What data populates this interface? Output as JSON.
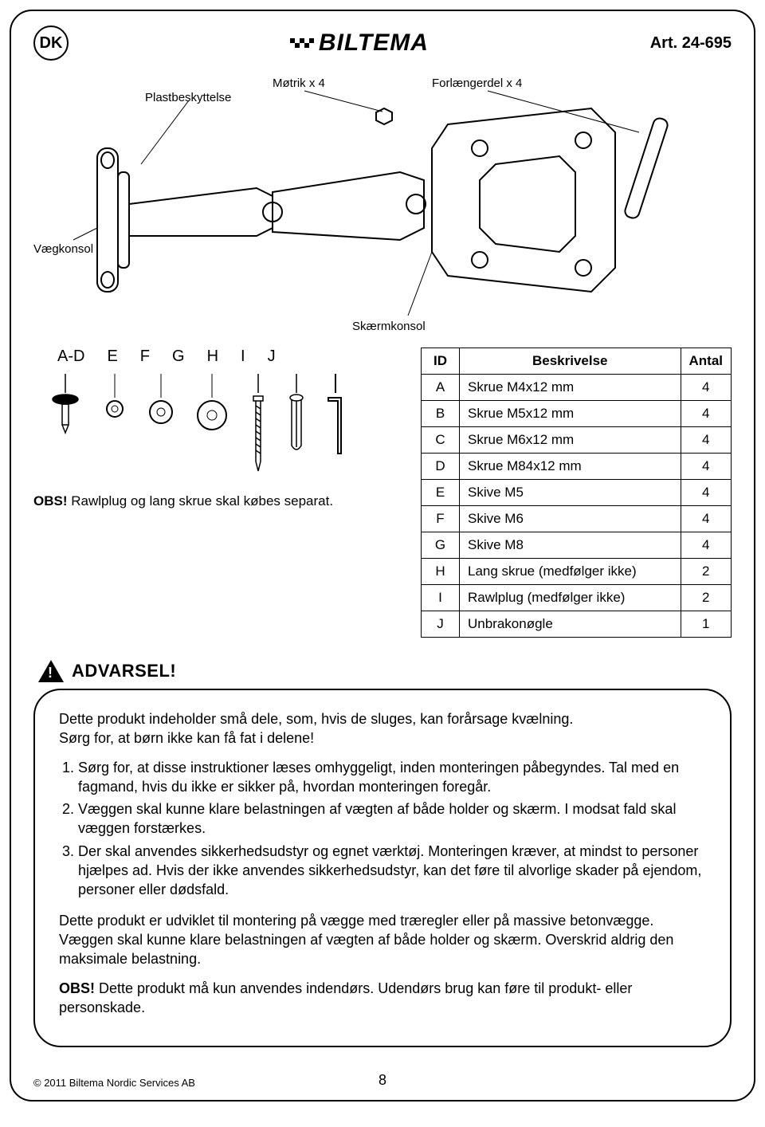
{
  "header": {
    "lang_badge": "DK",
    "brand": "BILTEMA",
    "article": "Art. 24-695"
  },
  "diagram_labels": {
    "nut": "Møtrik x 4",
    "extender": "Forlængerdel x 4",
    "plast": "Plastbeskyttelse",
    "wall": "Vægkonsol",
    "screen": "Skærmkonsol"
  },
  "parts_row_labels": [
    "A-D",
    "E",
    "F",
    "G",
    "H",
    "I",
    "J"
  ],
  "separate_note_bold": "OBS!",
  "separate_note_rest": " Rawlplug og lang skrue skal købes separat.",
  "table": {
    "headers": [
      "ID",
      "Beskrivelse",
      "Antal"
    ],
    "rows": [
      [
        "A",
        "Skrue M4x12 mm",
        "4"
      ],
      [
        "B",
        "Skrue M5x12 mm",
        "4"
      ],
      [
        "C",
        "Skrue M6x12 mm",
        "4"
      ],
      [
        "D",
        "Skrue M84x12 mm",
        "4"
      ],
      [
        "E",
        "Skive M5",
        "4"
      ],
      [
        "F",
        "Skive M6",
        "4"
      ],
      [
        "G",
        "Skive M8",
        "4"
      ],
      [
        "H",
        "Lang skrue (medfølger ikke)",
        "2"
      ],
      [
        "I",
        "Rawlplug (medfølger ikke)",
        "2"
      ],
      [
        "J",
        "Unbrakonøgle",
        "1"
      ]
    ]
  },
  "warning": {
    "title": "ADVARSEL!",
    "intro1": "Dette produkt indeholder små dele, som, hvis de sluges, kan forårsage kvælning.",
    "intro2": "Sørg for, at børn ikke kan få fat i delene!",
    "items": [
      "Sørg for, at disse instruktioner læses omhyggeligt, inden monteringen påbegyndes. Tal med en fagmand, hvis du ikke er sikker på, hvordan monteringen foregår.",
      "Væggen skal kunne klare belastningen af vægten af både holder og skærm. I modsat fald skal væggen forstærkes.",
      "Der skal anvendes sikkerhedsudstyr og egnet værktøj. Monteringen kræver, at mindst to personer hjælpes ad. Hvis der ikke anvendes sikkerhedsudstyr, kan det føre til alvorlige skader på ejendom, personer eller dødsfald."
    ],
    "para2": "Dette produkt er udviklet til montering på vægge med træregler eller på massive betonvægge. Væggen skal kunne klare belastningen af vægten af både holder og skærm. Overskrid aldrig den maksimale belastning.",
    "obs_bold": "OBS!",
    "obs_rest": " Dette produkt må kun anvendes indendørs. Udendørs brug kan føre til produkt- eller personskade."
  },
  "footer": {
    "copyright": "© 2011 Biltema Nordic Services AB",
    "page": "8"
  },
  "colors": {
    "text": "#000000",
    "bg": "#ffffff",
    "border": "#000000"
  }
}
